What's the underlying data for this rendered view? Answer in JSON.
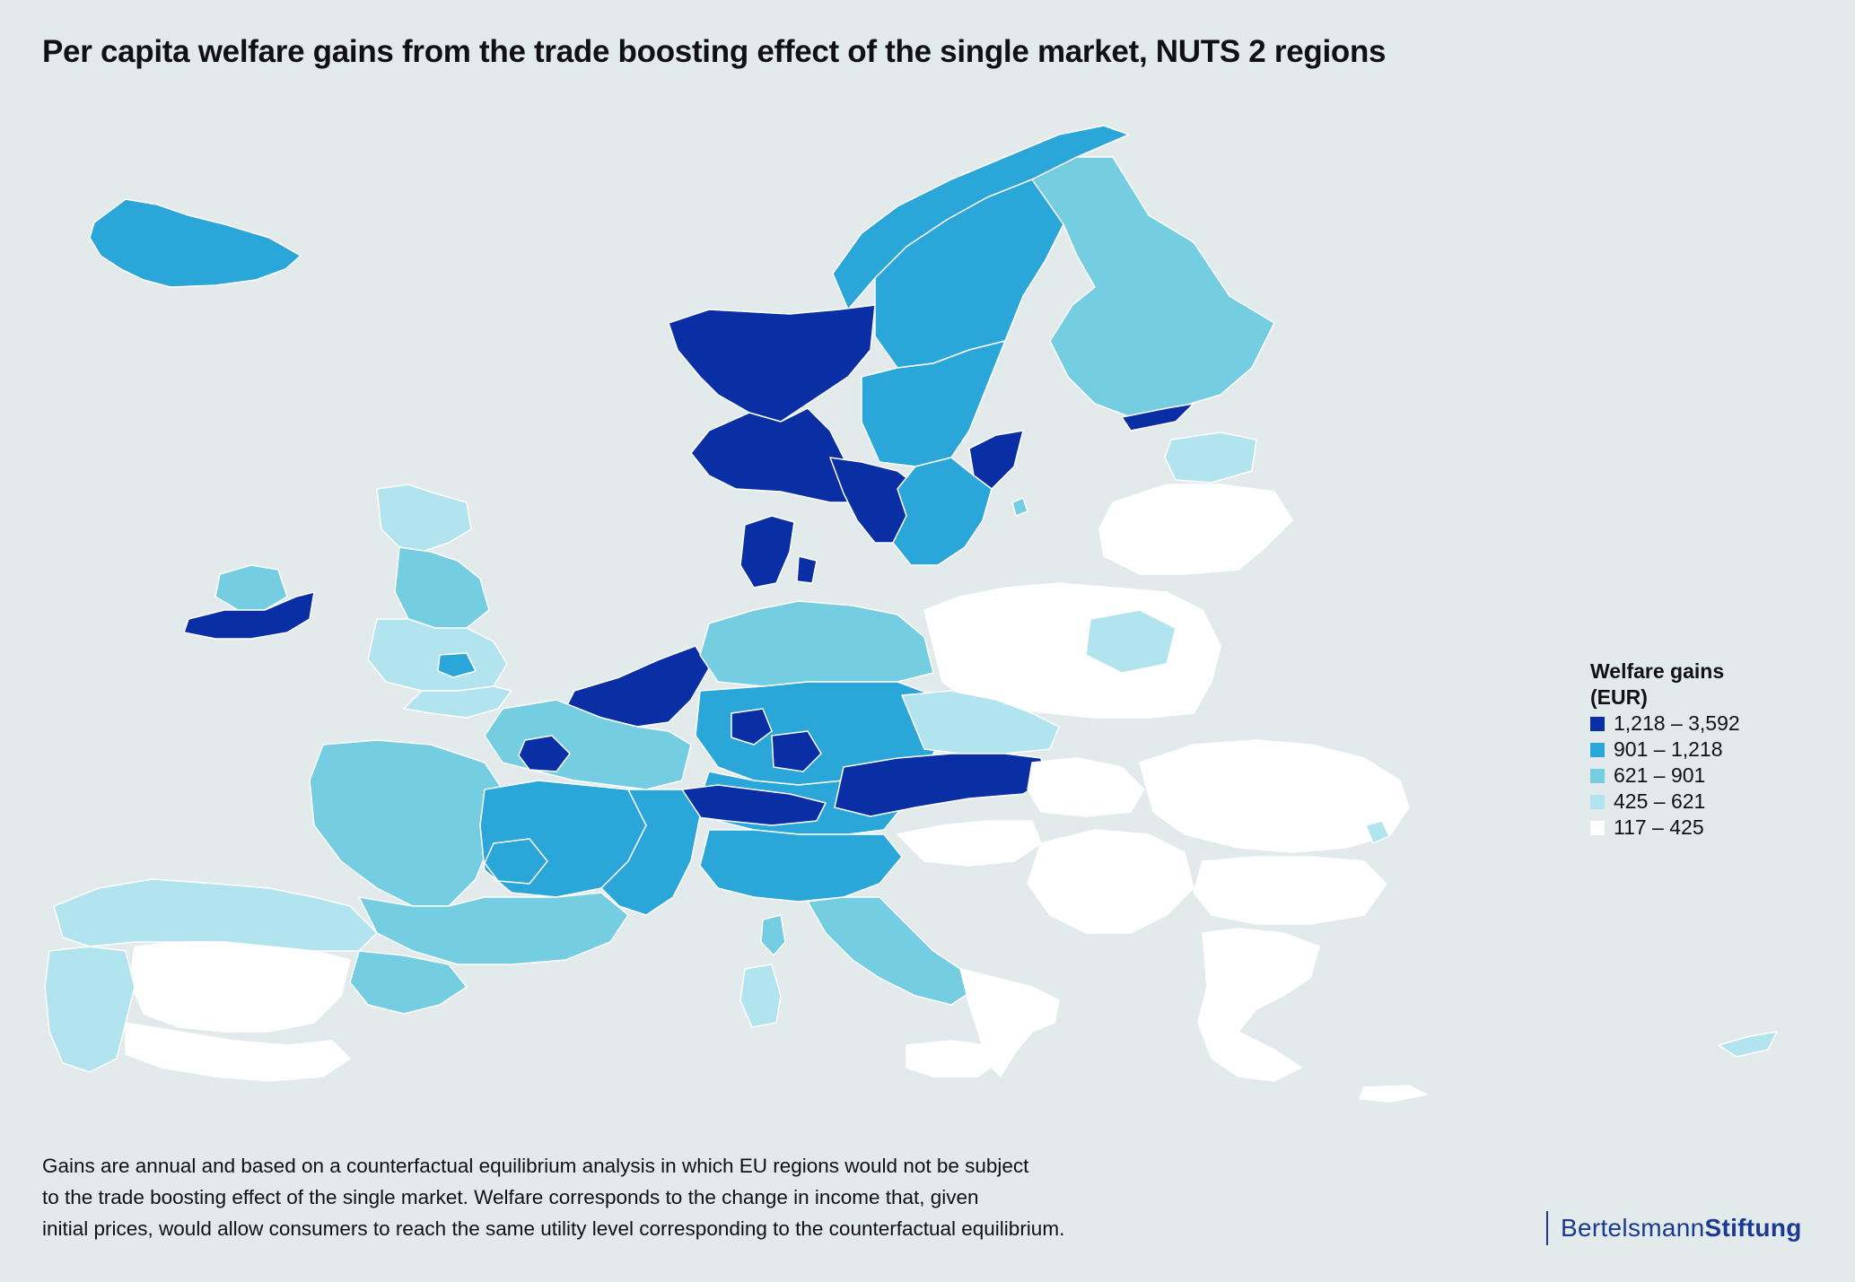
{
  "title": "Per capita welfare gains from the trade boosting effect of the single market, NUTS 2 regions",
  "legend": {
    "title_line1": "Welfare gains",
    "title_line2": "(EUR)",
    "items": [
      {
        "label": "1,218 – 3,592",
        "color": "#0a2ea3"
      },
      {
        "label": "901 – 1,218",
        "color": "#2aa6d8"
      },
      {
        "label": "621 – 901",
        "color": "#74cde0"
      },
      {
        "label": "425 – 621",
        "color": "#b1e4ee"
      },
      {
        "label": "117 – 425",
        "color": "#ffffff"
      }
    ]
  },
  "footnote": [
    "Gains are annual and based on a counterfactual equilibrium analysis in which EU regions would not be subject",
    "to the trade boosting effect of the single market. Welfare corresponds to the change in income that, given",
    "initial prices, would allow consumers to reach the same utility level corresponding to the counterfactual equilibrium."
  ],
  "logo": {
    "part1": "Bertelsmann",
    "part2": "Stiftung"
  },
  "colors": {
    "background": "#e3eaec",
    "class1": "#0a2ea3",
    "class2": "#2aa6d8",
    "class3": "#74cde0",
    "class4": "#b1e4ee",
    "class5": "#ffffff"
  }
}
